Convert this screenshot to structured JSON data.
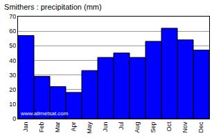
{
  "chart_data": {
    "type": "bar",
    "title": "Smithers : precipitation (mm)",
    "categories": [
      "Jan",
      "Feb",
      "Mar",
      "Apr",
      "May",
      "Jun",
      "Jul",
      "Aug",
      "Sep",
      "Oct",
      "Nov",
      "Dec"
    ],
    "values": [
      57,
      29,
      22,
      18,
      33,
      42,
      45,
      42,
      53,
      62,
      54,
      47
    ],
    "color": "#0000ff",
    "ylim": [
      0,
      70
    ],
    "yticks": [
      0,
      10,
      20,
      30,
      40,
      50,
      60,
      70
    ],
    "grid": true,
    "annotations": [
      {
        "text": "www.allmetsat.com"
      }
    ]
  }
}
